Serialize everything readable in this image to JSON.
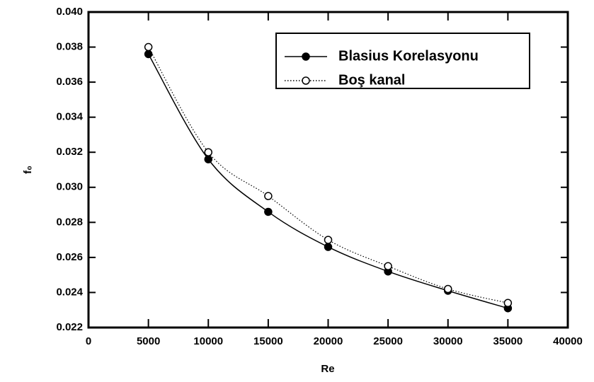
{
  "chart_data": {
    "type": "line",
    "xlabel": "Re",
    "ylabel": "f₀",
    "x": [
      5000,
      10000,
      15000,
      20000,
      25000,
      30000,
      35000
    ],
    "series": [
      {
        "name": "Blasius Korelasyonu",
        "color": "#000000",
        "marker": "filled",
        "dash": "solid",
        "values": [
          0.0376,
          0.0316,
          0.0286,
          0.0266,
          0.0252,
          0.0241,
          0.0231
        ]
      },
      {
        "name": "Boş kanal",
        "color": "#000000",
        "marker": "open",
        "dash": "dotted",
        "values": [
          0.038,
          0.032,
          0.0295,
          0.027,
          0.0255,
          0.0242,
          0.0234
        ]
      }
    ],
    "xlim": [
      0,
      40000
    ],
    "xticks": [
      0,
      5000,
      10000,
      15000,
      20000,
      25000,
      30000,
      35000,
      40000
    ],
    "ylim": [
      0.022,
      0.04
    ],
    "yticks": [
      0.022,
      0.024,
      0.026,
      0.028,
      {
        "value": 0.03,
        "label": "0.030"
      },
      0.032,
      0.034,
      0.036,
      0.038,
      {
        "value": 0.04,
        "label": "0.040"
      }
    ],
    "grid": false,
    "legend": "upper right"
  }
}
